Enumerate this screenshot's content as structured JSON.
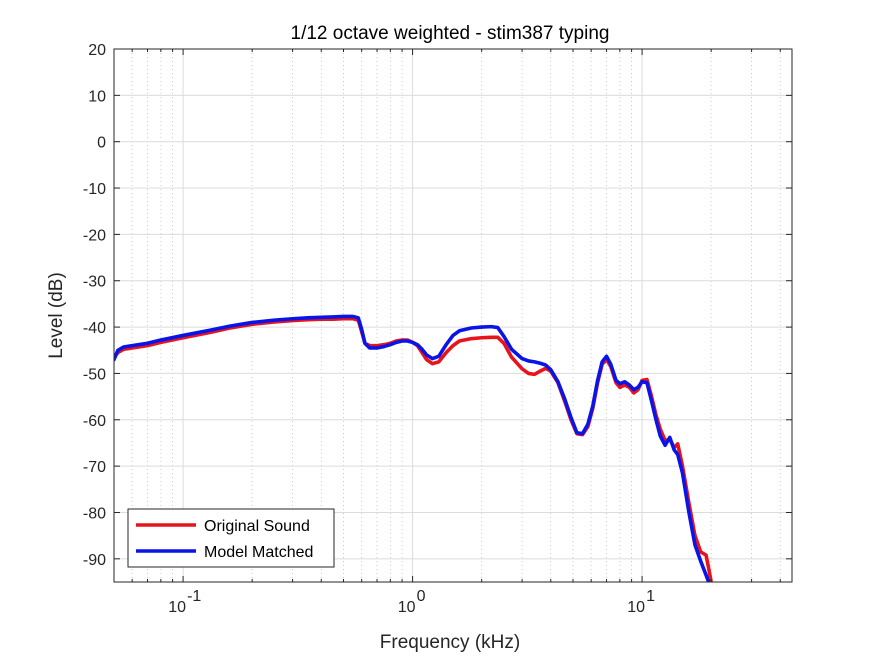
{
  "chart_data": {
    "type": "line",
    "title": "1/12 octave weighted - stim387 typing",
    "xlabel": "Frequency (kHz)",
    "ylabel": "Level (dB)",
    "xscale": "log",
    "xlim": [
      0.05,
      45
    ],
    "ylim": [
      -95,
      20
    ],
    "xticks": [
      {
        "value": 0.1,
        "base": "10",
        "exp": "-1"
      },
      {
        "value": 1,
        "base": "10",
        "exp": "0"
      },
      {
        "value": 10,
        "base": "10",
        "exp": "1"
      }
    ],
    "yticks": [
      20,
      10,
      0,
      -10,
      -20,
      -30,
      -40,
      -50,
      -60,
      -70,
      -80,
      -90
    ],
    "grid": true,
    "minor_grid": true,
    "legend_position": "bottom-left",
    "series": [
      {
        "name": "Original Sound",
        "color": "#e8141c",
        "points": [
          [
            0.05,
            -46.5
          ],
          [
            0.052,
            -45.5
          ],
          [
            0.055,
            -44.8
          ],
          [
            0.06,
            -44.5
          ],
          [
            0.07,
            -44
          ],
          [
            0.08,
            -43.3
          ],
          [
            0.1,
            -42.3
          ],
          [
            0.13,
            -41.2
          ],
          [
            0.16,
            -40.2
          ],
          [
            0.2,
            -39.4
          ],
          [
            0.25,
            -38.9
          ],
          [
            0.3,
            -38.6
          ],
          [
            0.35,
            -38.4
          ],
          [
            0.4,
            -38.3
          ],
          [
            0.45,
            -38.3
          ],
          [
            0.5,
            -38.2
          ],
          [
            0.55,
            -38.2
          ],
          [
            0.58,
            -38.5
          ],
          [
            0.6,
            -41
          ],
          [
            0.62,
            -43.5
          ],
          [
            0.65,
            -44
          ],
          [
            0.7,
            -44
          ],
          [
            0.75,
            -43.8
          ],
          [
            0.8,
            -43.5
          ],
          [
            0.85,
            -43
          ],
          [
            0.9,
            -42.8
          ],
          [
            0.95,
            -42.8
          ],
          [
            1.0,
            -43.3
          ],
          [
            1.05,
            -44
          ],
          [
            1.1,
            -45.5
          ],
          [
            1.15,
            -47
          ],
          [
            1.22,
            -47.9
          ],
          [
            1.3,
            -47.5
          ],
          [
            1.4,
            -45.5
          ],
          [
            1.5,
            -44
          ],
          [
            1.6,
            -43
          ],
          [
            1.8,
            -42.5
          ],
          [
            2.0,
            -42.3
          ],
          [
            2.2,
            -42.2
          ],
          [
            2.35,
            -42.2
          ],
          [
            2.5,
            -43.5
          ],
          [
            2.7,
            -46.5
          ],
          [
            3.0,
            -49
          ],
          [
            3.2,
            -50
          ],
          [
            3.4,
            -50.2
          ],
          [
            3.6,
            -49.5
          ],
          [
            3.8,
            -48.9
          ],
          [
            4.0,
            -49.5
          ],
          [
            4.3,
            -52
          ],
          [
            4.6,
            -56
          ],
          [
            4.9,
            -60
          ],
          [
            5.2,
            -63
          ],
          [
            5.5,
            -63.2
          ],
          [
            5.8,
            -61.5
          ],
          [
            6.1,
            -57.5
          ],
          [
            6.4,
            -52
          ],
          [
            6.7,
            -48
          ],
          [
            7.0,
            -47
          ],
          [
            7.3,
            -48.5
          ],
          [
            7.7,
            -52
          ],
          [
            8.0,
            -53
          ],
          [
            8.4,
            -52.5
          ],
          [
            8.8,
            -53
          ],
          [
            9.2,
            -54.2
          ],
          [
            9.6,
            -53.5
          ],
          [
            10.0,
            -51.5
          ],
          [
            10.5,
            -51.3
          ],
          [
            11.0,
            -55
          ],
          [
            11.5,
            -59
          ],
          [
            12.0,
            -62
          ],
          [
            12.6,
            -64.5
          ],
          [
            13.2,
            -64.2
          ],
          [
            13.8,
            -66
          ],
          [
            14.3,
            -65.2
          ],
          [
            15.0,
            -70
          ],
          [
            16.0,
            -78
          ],
          [
            17.0,
            -85
          ],
          [
            18.0,
            -88.5
          ],
          [
            19.0,
            -89.2
          ],
          [
            19.5,
            -92
          ],
          [
            20.0,
            -95
          ]
        ]
      },
      {
        "name": "Model Matched",
        "color": "#0a14e8",
        "points": [
          [
            0.05,
            -47
          ],
          [
            0.052,
            -45
          ],
          [
            0.055,
            -44.3
          ],
          [
            0.06,
            -44
          ],
          [
            0.07,
            -43.5
          ],
          [
            0.08,
            -42.8
          ],
          [
            0.1,
            -41.8
          ],
          [
            0.13,
            -40.7
          ],
          [
            0.16,
            -39.8
          ],
          [
            0.2,
            -39
          ],
          [
            0.25,
            -38.5
          ],
          [
            0.3,
            -38.2
          ],
          [
            0.35,
            -38.0
          ],
          [
            0.4,
            -37.9
          ],
          [
            0.45,
            -37.8
          ],
          [
            0.5,
            -37.7
          ],
          [
            0.55,
            -37.7
          ],
          [
            0.58,
            -38
          ],
          [
            0.6,
            -40.5
          ],
          [
            0.62,
            -43.5
          ],
          [
            0.65,
            -44.5
          ],
          [
            0.7,
            -44.5
          ],
          [
            0.75,
            -44.2
          ],
          [
            0.8,
            -43.8
          ],
          [
            0.85,
            -43.3
          ],
          [
            0.9,
            -43
          ],
          [
            0.95,
            -43
          ],
          [
            1.0,
            -43.3
          ],
          [
            1.05,
            -43.8
          ],
          [
            1.1,
            -44.8
          ],
          [
            1.15,
            -46
          ],
          [
            1.22,
            -46.8
          ],
          [
            1.3,
            -46.3
          ],
          [
            1.4,
            -43.8
          ],
          [
            1.5,
            -41.8
          ],
          [
            1.6,
            -40.8
          ],
          [
            1.8,
            -40.2
          ],
          [
            2.0,
            -40
          ],
          [
            2.2,
            -39.9
          ],
          [
            2.35,
            -40.1
          ],
          [
            2.5,
            -42
          ],
          [
            2.7,
            -44.8
          ],
          [
            3.0,
            -46.8
          ],
          [
            3.2,
            -47.3
          ],
          [
            3.4,
            -47.5
          ],
          [
            3.6,
            -47.8
          ],
          [
            3.8,
            -48.2
          ],
          [
            4.0,
            -49.2
          ],
          [
            4.3,
            -51.8
          ],
          [
            4.6,
            -55.5
          ],
          [
            4.9,
            -59.5
          ],
          [
            5.2,
            -62.8
          ],
          [
            5.5,
            -63
          ],
          [
            5.8,
            -61
          ],
          [
            6.1,
            -57
          ],
          [
            6.4,
            -51.5
          ],
          [
            6.7,
            -47.5
          ],
          [
            7.0,
            -46.3
          ],
          [
            7.3,
            -48
          ],
          [
            7.7,
            -51.5
          ],
          [
            8.0,
            -52.2
          ],
          [
            8.4,
            -51.8
          ],
          [
            8.8,
            -52.5
          ],
          [
            9.2,
            -53.5
          ],
          [
            9.6,
            -53
          ],
          [
            10.0,
            -51.8
          ],
          [
            10.5,
            -52
          ],
          [
            11.0,
            -56
          ],
          [
            11.5,
            -60
          ],
          [
            12.0,
            -63.5
          ],
          [
            12.6,
            -65.5
          ],
          [
            13.2,
            -63.8
          ],
          [
            13.8,
            -66.5
          ],
          [
            14.3,
            -67.5
          ],
          [
            15.0,
            -71.5
          ],
          [
            16.0,
            -80
          ],
          [
            17.0,
            -87
          ],
          [
            18.0,
            -90.5
          ],
          [
            19.0,
            -93.5
          ],
          [
            19.5,
            -95
          ]
        ]
      }
    ]
  }
}
